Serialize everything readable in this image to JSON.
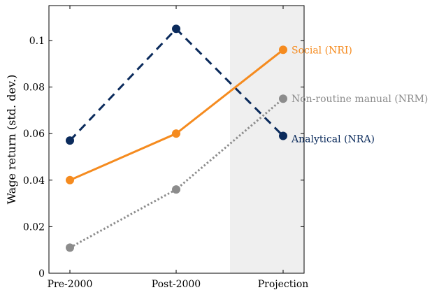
{
  "chart_data": {
    "type": "line",
    "categories": [
      "Pre-2000",
      "Post-2000",
      "Projection"
    ],
    "ylabel": "Wage return (std. dev.)",
    "ylim": [
      0,
      0.115
    ],
    "yticks": [
      "0",
      "0.02",
      "0.04",
      "0.06",
      "0.08",
      "0.1"
    ],
    "shaded_region": {
      "category": "Projection",
      "color": "#efefef"
    },
    "series": [
      {
        "name": "Analytical (NRA)",
        "values": [
          0.057,
          0.105,
          0.059
        ],
        "color": "#0b2b5c",
        "style": "dashed"
      },
      {
        "name": "Social (NRI)",
        "values": [
          0.04,
          0.06,
          0.096
        ],
        "color": "#f58b1f",
        "style": "solid"
      },
      {
        "name": "Non-routine manual (NRM)",
        "values": [
          0.011,
          0.036,
          0.075
        ],
        "color": "#8c8c8c",
        "style": "dotted"
      }
    ]
  }
}
